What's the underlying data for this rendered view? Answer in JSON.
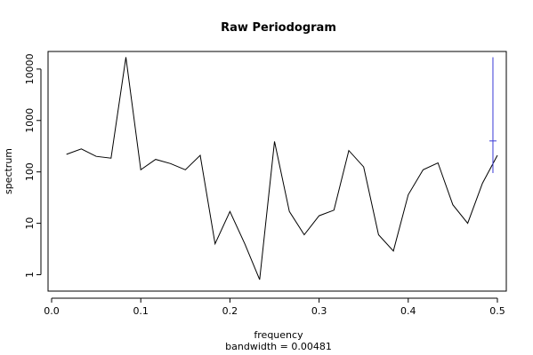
{
  "chart_data": {
    "type": "line",
    "title": "Raw Periodogram",
    "xlabel": "frequency",
    "sublabel": "bandwidth = 0.00481",
    "ylabel": "spectrum",
    "y_scale": "log",
    "xlim": [
      -0.004,
      0.51
    ],
    "ylim": [
      0.48,
      22000
    ],
    "x_ticks": [
      0.0,
      0.1,
      0.2,
      0.3,
      0.4,
      0.5
    ],
    "x_tick_labels": [
      "0.0",
      "0.1",
      "0.2",
      "0.3",
      "0.4",
      "0.5"
    ],
    "y_ticks": [
      1,
      10,
      100,
      1000,
      10000
    ],
    "y_tick_labels": [
      "1",
      "10",
      "100",
      "1000",
      "10000"
    ],
    "grid": false,
    "line_color": "#000000",
    "ci_color": "#3b3bd6",
    "series": [
      {
        "x": [
          0.0167,
          0.0333,
          0.05,
          0.0667,
          0.0833,
          0.1,
          0.1167,
          0.1333,
          0.15,
          0.1667,
          0.1833,
          0.2,
          0.2167,
          0.2333,
          0.25,
          0.2667,
          0.2833,
          0.3,
          0.3167,
          0.3333,
          0.35,
          0.3667,
          0.3833,
          0.4,
          0.4167,
          0.4333,
          0.45,
          0.4667,
          0.4833,
          0.5
        ],
        "y": [
          220,
          280,
          200,
          185,
          17000,
          110,
          175,
          145,
          110,
          210,
          4,
          17,
          4,
          0.8,
          390,
          17,
          6,
          14,
          18,
          260,
          125,
          6,
          2.9,
          36,
          110,
          150,
          23,
          10,
          60,
          210
        ]
      }
    ],
    "confidence_bar": {
      "x": 0.495,
      "center": 400,
      "lower": 95,
      "upper": 17000
    }
  }
}
